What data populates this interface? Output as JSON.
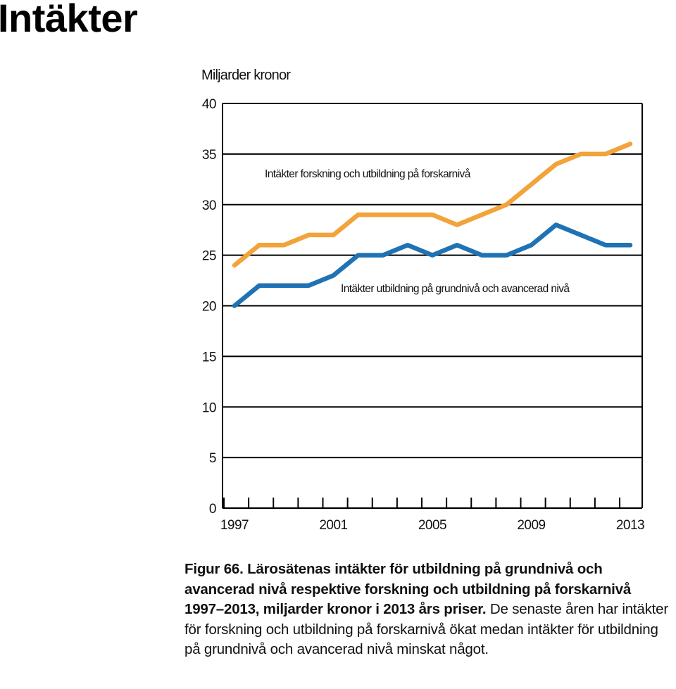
{
  "page": {
    "title": "Intäkter"
  },
  "chart_data": {
    "type": "line",
    "ylabel": "Miljarder kronor",
    "ylim": [
      0,
      40
    ],
    "yticks": [
      0,
      5,
      10,
      15,
      20,
      25,
      30,
      35,
      40
    ],
    "xlim": [
      1997,
      2013
    ],
    "x": [
      1997,
      1998,
      1999,
      2000,
      2001,
      2002,
      2003,
      2004,
      2005,
      2006,
      2007,
      2008,
      2009,
      2010,
      2011,
      2012,
      2013
    ],
    "xtick_labels": [
      1997,
      2001,
      2005,
      2009,
      2013
    ],
    "grid": "horizontal",
    "series": [
      {
        "name": "Intäkter forskning och utbildning på forskarnivå",
        "color": "#f2a33a",
        "values": [
          24,
          26,
          26,
          27,
          27,
          29,
          29,
          29,
          29,
          28,
          29,
          30,
          32,
          34,
          35,
          35,
          36
        ]
      },
      {
        "name": "Intäkter utbildning på grundnivå och avancerad nivå",
        "color": "#1f72b4",
        "values": [
          20,
          22,
          22,
          22,
          23,
          25,
          25,
          26,
          25,
          26,
          25,
          25,
          26,
          28,
          27,
          26,
          26
        ]
      }
    ]
  },
  "caption": {
    "bold": "Figur 66. Lärosätenas intäkter för utbildning på grundnivå och avancerad nivå respektive forskning och utbildning på forskarnivå 1997–2013, miljarder kronor i 2013 års priser.",
    "text": "De senaste åren har intäkter för forskning och utbildning på forskarnivå ökat medan intäkter för utbildning på grundnivå och avancerad nivå minskat något."
  }
}
